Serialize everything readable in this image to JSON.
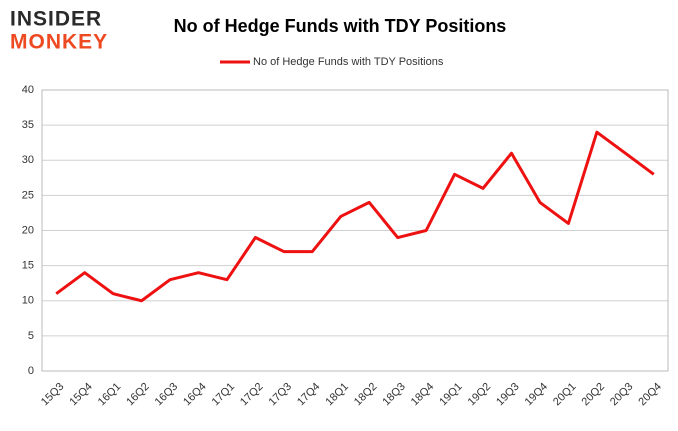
{
  "logo": {
    "line1": "INSIDER",
    "line2": "MONKEY"
  },
  "chart_data": {
    "type": "line",
    "title": "No of Hedge Funds with TDY Positions",
    "categories": [
      "15Q3",
      "15Q4",
      "16Q1",
      "16Q2",
      "16Q3",
      "16Q4",
      "17Q1",
      "17Q2",
      "17Q3",
      "17Q4",
      "18Q1",
      "18Q2",
      "18Q3",
      "18Q4",
      "19Q1",
      "19Q2",
      "19Q3",
      "19Q4",
      "20Q1",
      "20Q2",
      "20Q3",
      "20Q4"
    ],
    "series": [
      {
        "name": "No of Hedge Funds with TDY Positions",
        "color": "#ee1111",
        "values": [
          11,
          14,
          11,
          10,
          13,
          14,
          13,
          19,
          17,
          17,
          22,
          24,
          19,
          20,
          28,
          26,
          31,
          24,
          21,
          34,
          31,
          28
        ]
      }
    ],
    "ylim": [
      0,
      40
    ],
    "yticks": [
      0,
      5,
      10,
      15,
      20,
      25,
      30,
      35,
      40
    ],
    "grid": true,
    "legend": "top"
  }
}
